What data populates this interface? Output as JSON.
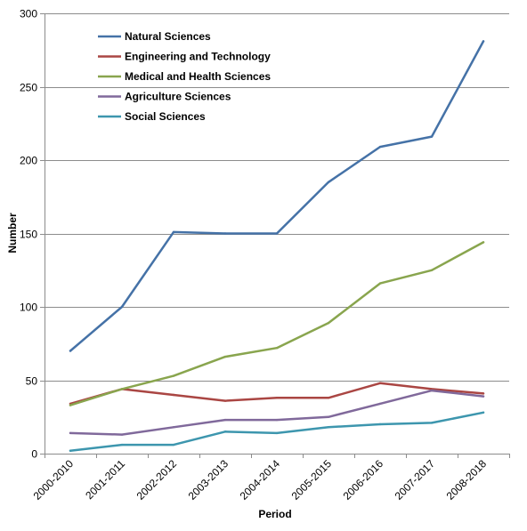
{
  "chart_data": {
    "type": "line",
    "xlabel": "Period",
    "ylabel": "Number",
    "categories": [
      "2000-2010",
      "2001-2011",
      "2002-2012",
      "2003-2013",
      "2004-2014",
      "2005-2015",
      "2006-2016",
      "2007-2017",
      "2008-2018"
    ],
    "ylim": [
      0,
      300
    ],
    "yticks": [
      0,
      50,
      100,
      150,
      200,
      250,
      300
    ],
    "grid": true,
    "legend_position": "top-left",
    "series": [
      {
        "name": "Natural Sciences",
        "color": "#4572A7",
        "values": [
          70,
          100,
          151,
          150,
          150,
          185,
          209,
          216,
          281
        ]
      },
      {
        "name": "Engineering and Technology",
        "color": "#AA4643",
        "values": [
          34,
          44,
          40,
          36,
          38,
          38,
          48,
          44,
          41
        ]
      },
      {
        "name": "Medical and Health Sciences",
        "color": "#89A54E",
        "values": [
          33,
          44,
          53,
          66,
          72,
          89,
          116,
          125,
          144
        ]
      },
      {
        "name": "Agriculture Sciences",
        "color": "#80699B",
        "values": [
          14,
          13,
          18,
          23,
          23,
          25,
          34,
          43,
          39
        ]
      },
      {
        "name": "Social Sciences",
        "color": "#3D96AE",
        "values": [
          2,
          6,
          6,
          15,
          14,
          18,
          20,
          21,
          28
        ]
      }
    ]
  }
}
